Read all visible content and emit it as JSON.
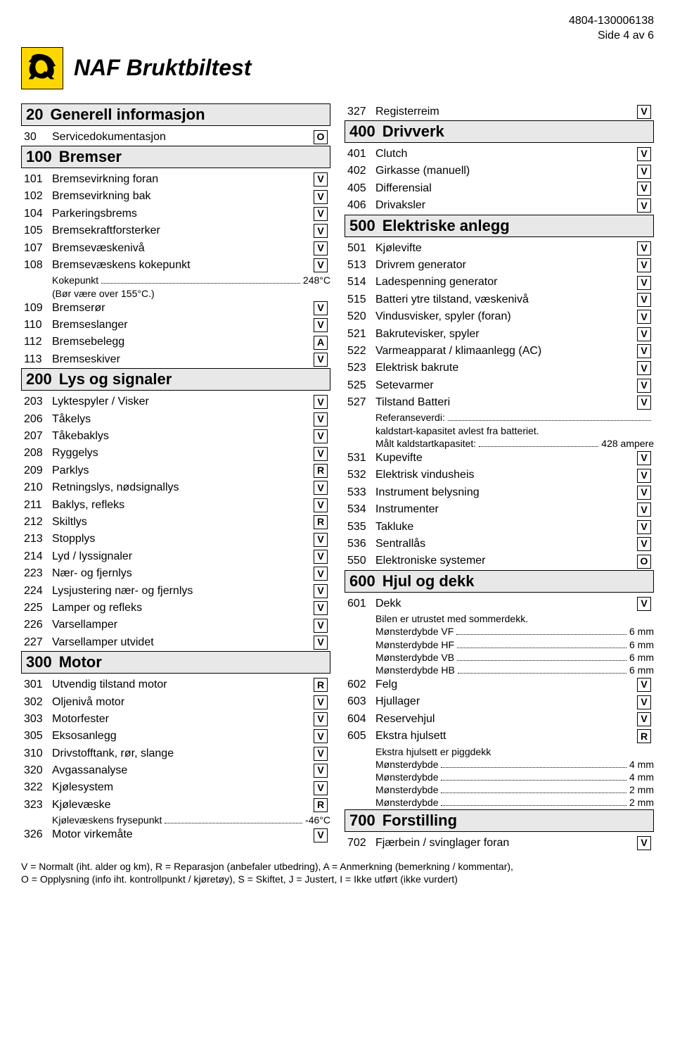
{
  "header": {
    "ref": "4804-130006138",
    "page": "Side 4 av 6",
    "title": "NAF Bruktbiltest"
  },
  "left": [
    {
      "type": "section",
      "num": "20",
      "title": "Generell informasjon"
    },
    {
      "type": "item",
      "num": "30",
      "label": "Servicedokumentasjon",
      "code": "O"
    },
    {
      "type": "section",
      "num": "100",
      "title": "Bremser"
    },
    {
      "type": "item",
      "num": "101",
      "label": "Bremsevirkning foran",
      "code": "V"
    },
    {
      "type": "item",
      "num": "102",
      "label": "Bremsevirkning bak",
      "code": "V"
    },
    {
      "type": "item",
      "num": "104",
      "label": "Parkeringsbrems",
      "code": "V"
    },
    {
      "type": "item",
      "num": "105",
      "label": "Bremsekraftforsterker",
      "code": "V"
    },
    {
      "type": "item",
      "num": "107",
      "label": "Bremsevæskenivå",
      "code": "V"
    },
    {
      "type": "item",
      "num": "108",
      "label": "Bremsevæskens kokepunkt",
      "code": "V"
    },
    {
      "type": "subnote",
      "label": "Kokepunkt",
      "val": "248°C"
    },
    {
      "type": "subline",
      "text": "(Bør være over 155°C.)"
    },
    {
      "type": "item",
      "num": "109",
      "label": "Bremserør",
      "code": "V"
    },
    {
      "type": "item",
      "num": "110",
      "label": "Bremseslanger",
      "code": "V"
    },
    {
      "type": "item",
      "num": "112",
      "label": "Bremsebelegg",
      "code": "A"
    },
    {
      "type": "item",
      "num": "113",
      "label": "Bremseskiver",
      "code": "V"
    },
    {
      "type": "section",
      "num": "200",
      "title": "Lys og signaler"
    },
    {
      "type": "item",
      "num": "203",
      "label": "Lyktespyler / Visker",
      "code": "V"
    },
    {
      "type": "item",
      "num": "206",
      "label": "Tåkelys",
      "code": "V"
    },
    {
      "type": "item",
      "num": "207",
      "label": "Tåkebaklys",
      "code": "V"
    },
    {
      "type": "item",
      "num": "208",
      "label": "Ryggelys",
      "code": "V"
    },
    {
      "type": "item",
      "num": "209",
      "label": "Parklys",
      "code": "R"
    },
    {
      "type": "item",
      "num": "210",
      "label": "Retningslys, nødsignallys",
      "code": "V"
    },
    {
      "type": "item",
      "num": "211",
      "label": "Baklys, refleks",
      "code": "V"
    },
    {
      "type": "item",
      "num": "212",
      "label": "Skiltlys",
      "code": "R"
    },
    {
      "type": "item",
      "num": "213",
      "label": "Stopplys",
      "code": "V"
    },
    {
      "type": "item",
      "num": "214",
      "label": "Lyd / lyssignaler",
      "code": "V"
    },
    {
      "type": "item",
      "num": "223",
      "label": "Nær- og fjernlys",
      "code": "V"
    },
    {
      "type": "item",
      "num": "224",
      "label": "Lysjustering nær- og fjernlys",
      "code": "V"
    },
    {
      "type": "item",
      "num": "225",
      "label": "Lamper og refleks",
      "code": "V"
    },
    {
      "type": "item",
      "num": "226",
      "label": "Varsellamper",
      "code": "V"
    },
    {
      "type": "item",
      "num": "227",
      "label": "Varsellamper utvidet",
      "code": "V"
    },
    {
      "type": "section",
      "num": "300",
      "title": "Motor"
    },
    {
      "type": "item",
      "num": "301",
      "label": "Utvendig tilstand motor",
      "code": "R"
    },
    {
      "type": "item",
      "num": "302",
      "label": "Oljenivå motor",
      "code": "V"
    },
    {
      "type": "item",
      "num": "303",
      "label": "Motorfester",
      "code": "V"
    },
    {
      "type": "item",
      "num": "305",
      "label": "Eksosanlegg",
      "code": "V"
    },
    {
      "type": "item",
      "num": "310",
      "label": "Drivstofftank, rør, slange",
      "code": "V"
    },
    {
      "type": "item",
      "num": "320",
      "label": "Avgassanalyse",
      "code": "V"
    },
    {
      "type": "item",
      "num": "322",
      "label": "Kjølesystem",
      "code": "V"
    },
    {
      "type": "item",
      "num": "323",
      "label": "Kjølevæske",
      "code": "R"
    },
    {
      "type": "subnote",
      "label": "Kjølevæskens frysepunkt",
      "val": "-46°C"
    },
    {
      "type": "item",
      "num": "326",
      "label": "Motor virkemåte",
      "code": "V"
    }
  ],
  "right": [
    {
      "type": "item",
      "num": "327",
      "label": "Registerreim",
      "code": "V"
    },
    {
      "type": "section",
      "num": "400",
      "title": "Drivverk"
    },
    {
      "type": "item",
      "num": "401",
      "label": "Clutch",
      "code": "V"
    },
    {
      "type": "item",
      "num": "402",
      "label": "Girkasse (manuell)",
      "code": "V"
    },
    {
      "type": "item",
      "num": "405",
      "label": "Differensial",
      "code": "V"
    },
    {
      "type": "item",
      "num": "406",
      "label": "Drivaksler",
      "code": "V"
    },
    {
      "type": "section",
      "num": "500",
      "title": "Elektriske anlegg"
    },
    {
      "type": "item",
      "num": "501",
      "label": "Kjølevifte",
      "code": "V"
    },
    {
      "type": "item",
      "num": "513",
      "label": "Drivrem generator",
      "code": "V"
    },
    {
      "type": "item",
      "num": "514",
      "label": "Ladespenning generator",
      "code": "V"
    },
    {
      "type": "item",
      "num": "515",
      "label": "Batteri ytre tilstand, væskenivå",
      "code": "V"
    },
    {
      "type": "item",
      "num": "520",
      "label": "Vindusvisker, spyler (foran)",
      "code": "V"
    },
    {
      "type": "item",
      "num": "521",
      "label": "Bakrutevisker, spyler",
      "code": "V"
    },
    {
      "type": "item",
      "num": "522",
      "label": "Varmeapparat / klimaanlegg (AC)",
      "code": "V"
    },
    {
      "type": "item",
      "num": "523",
      "label": "Elektrisk bakrute",
      "code": "V"
    },
    {
      "type": "item",
      "num": "525",
      "label": "Setevarmer",
      "code": "V"
    },
    {
      "type": "item",
      "num": "527",
      "label": "Tilstand Batteri",
      "code": "V"
    },
    {
      "type": "subnote",
      "label": "Referanseverdi:",
      "val": ""
    },
    {
      "type": "subline",
      "text": "kaldstart-kapasitet avlest fra batteriet."
    },
    {
      "type": "subnote",
      "label": "Målt kaldstartkapasitet:",
      "val": "428 ampere"
    },
    {
      "type": "item",
      "num": "531",
      "label": "Kupevifte",
      "code": "V"
    },
    {
      "type": "item",
      "num": "532",
      "label": "Elektrisk vindusheis",
      "code": "V"
    },
    {
      "type": "item",
      "num": "533",
      "label": "Instrument belysning",
      "code": "V"
    },
    {
      "type": "item",
      "num": "534",
      "label": "Instrumenter",
      "code": "V"
    },
    {
      "type": "item",
      "num": "535",
      "label": "Takluke",
      "code": "V"
    },
    {
      "type": "item",
      "num": "536",
      "label": "Sentrallås",
      "code": "V"
    },
    {
      "type": "item",
      "num": "550",
      "label": "Elektroniske systemer",
      "code": "O"
    },
    {
      "type": "section",
      "num": "600",
      "title": "Hjul og dekk"
    },
    {
      "type": "item",
      "num": "601",
      "label": "Dekk",
      "code": "V"
    },
    {
      "type": "subline",
      "text": "Bilen er utrustet med sommerdekk."
    },
    {
      "type": "subnote",
      "label": "Mønsterdybde VF",
      "val": "6 mm"
    },
    {
      "type": "subnote",
      "label": "Mønsterdybde HF",
      "val": "6 mm"
    },
    {
      "type": "subnote",
      "label": "Mønsterdybde VB",
      "val": "6 mm"
    },
    {
      "type": "subnote",
      "label": "Mønsterdybde HB",
      "val": "6 mm"
    },
    {
      "type": "item",
      "num": "602",
      "label": "Felg",
      "code": "V"
    },
    {
      "type": "item",
      "num": "603",
      "label": "Hjullager",
      "code": "V"
    },
    {
      "type": "item",
      "num": "604",
      "label": "Reservehjul",
      "code": "V"
    },
    {
      "type": "item",
      "num": "605",
      "label": "Ekstra hjulsett",
      "code": "R"
    },
    {
      "type": "subline",
      "text": "Ekstra hjulsett er piggdekk"
    },
    {
      "type": "subnote",
      "label": "Mønsterdybde",
      "val": "4 mm"
    },
    {
      "type": "subnote",
      "label": "Mønsterdybde",
      "val": "4 mm"
    },
    {
      "type": "subnote",
      "label": "Mønsterdybde",
      "val": "2 mm"
    },
    {
      "type": "subnote",
      "label": "Mønsterdybde",
      "val": "2 mm"
    },
    {
      "type": "section",
      "num": "700",
      "title": "Forstilling"
    },
    {
      "type": "item",
      "num": "702",
      "label": "Fjærbein / svinglager foran",
      "code": "V"
    }
  ],
  "footer": {
    "line1": "V = Normalt (iht. alder og km), R = Reparasjon (anbefaler utbedring), A = Anmerkning (bemerkning / kommentar),",
    "line2": "O = Opplysning (info iht. kontrollpunkt / kjøretøy), S = Skiftet, J = Justert, I = Ikke utført (ikke vurdert)"
  }
}
